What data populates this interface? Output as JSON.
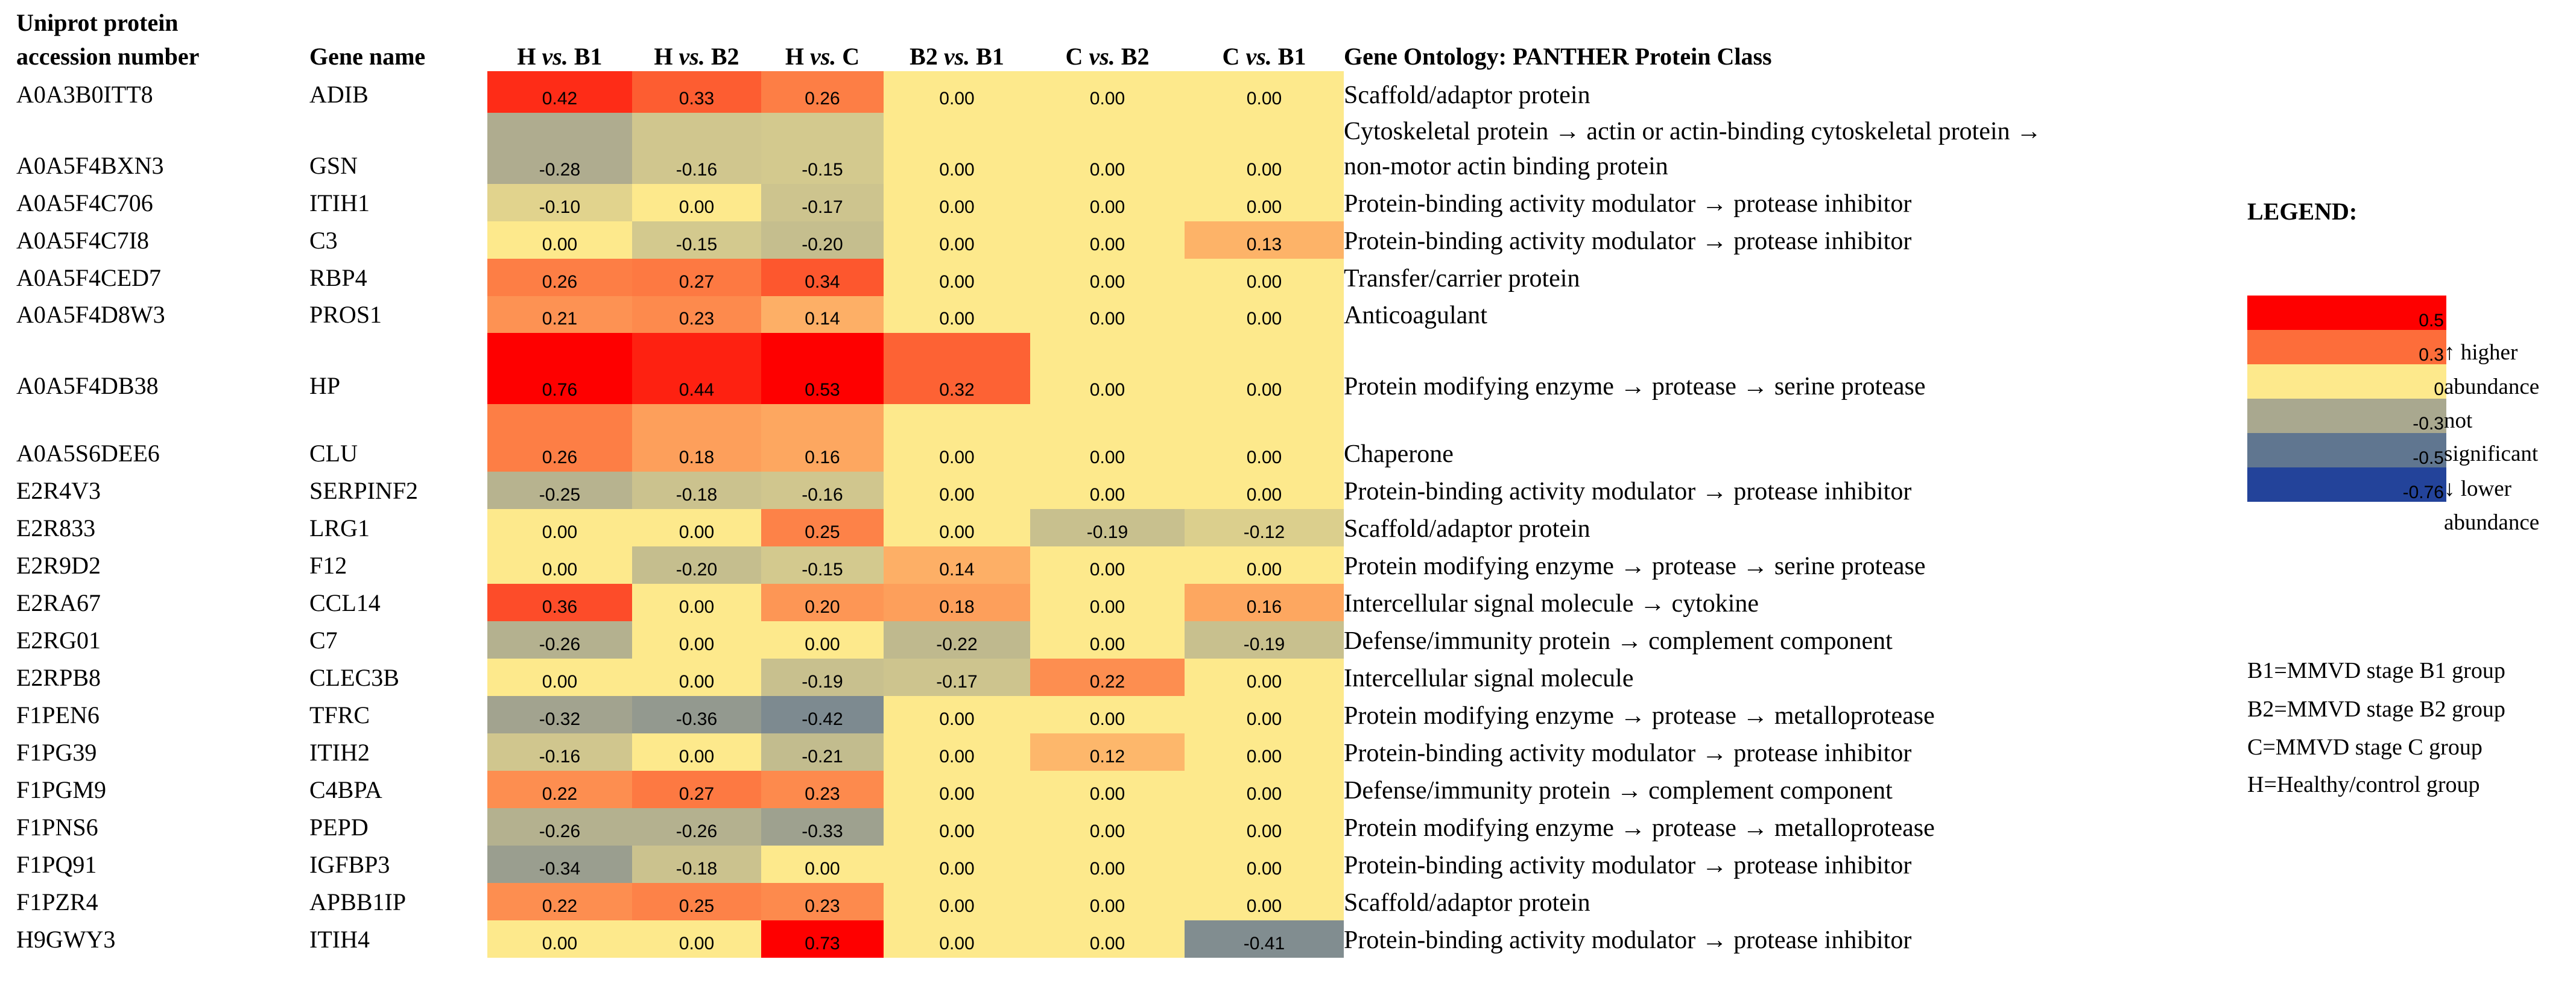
{
  "chart_data": {
    "type": "heatmap",
    "header_accession": [
      "Uniprot protein",
      "accession number"
    ],
    "header_gene": "Gene name",
    "header_ontology": "Gene Ontology: PANTHER Protein Class",
    "comparisons": [
      {
        "left": "H",
        "vs": "vs.",
        "right": "B1"
      },
      {
        "left": "H",
        "vs": "vs.",
        "right": "B2"
      },
      {
        "left": "H",
        "vs": "vs.",
        "right": "C"
      },
      {
        "left": "B2",
        "vs": "vs.",
        "right": "B1"
      },
      {
        "left": "C",
        "vs": "vs.",
        "right": "B2"
      },
      {
        "left": "C",
        "vs": "vs.",
        "right": "B1"
      }
    ],
    "rows": [
      {
        "accession": "A0A3B0ITT8",
        "gene": "ADIB",
        "values": [
          "0.42",
          "0.33",
          "0.26",
          "0.00",
          "0.00",
          "0.00"
        ],
        "ontology": [
          "Scaffold/adaptor protein"
        ]
      },
      {
        "accession": "A0A5F4BXN3",
        "gene": "GSN",
        "values": [
          "-0.28",
          "-0.16",
          "-0.15",
          "0.00",
          "0.00",
          "0.00"
        ],
        "ontology": [
          "Cytoskeletal protein → actin or actin-binding cytoskeletal protein →",
          "non-motor actin binding protein"
        ]
      },
      {
        "accession": "A0A5F4C706",
        "gene": "ITIH1",
        "values": [
          "-0.10",
          "0.00",
          "-0.17",
          "0.00",
          "0.00",
          "0.00"
        ],
        "ontology": [
          "Protein-binding activity modulator → protease inhibitor"
        ]
      },
      {
        "accession": "A0A5F4C7I8",
        "gene": "C3",
        "values": [
          "0.00",
          "-0.15",
          "-0.20",
          "0.00",
          "0.00",
          "0.13"
        ],
        "ontology": [
          "Protein-binding activity modulator →   protease inhibitor"
        ]
      },
      {
        "accession": "A0A5F4CED7",
        "gene": "RBP4",
        "values": [
          "0.26",
          "0.27",
          "0.34",
          "0.00",
          "0.00",
          "0.00"
        ],
        "ontology": [
          "Transfer/carrier protein"
        ]
      },
      {
        "accession": "A0A5F4D8W3",
        "gene": "PROS1",
        "values": [
          "0.21",
          "0.23",
          "0.14",
          "0.00",
          "0.00",
          "0.00"
        ],
        "ontology": [
          "Anticoagulant"
        ]
      },
      {
        "accession": "A0A5F4DB38",
        "gene": "HP",
        "values": [
          "0.76",
          "0.44",
          "0.53",
          "0.32",
          "0.00",
          "0.00"
        ],
        "ontology": [
          "Protein modifying enzyme → protease → serine protease"
        ]
      },
      {
        "accession": "A0A5S6DEE6",
        "gene": "CLU",
        "values": [
          "0.26",
          "0.18",
          "0.16",
          "0.00",
          "0.00",
          "0.00"
        ],
        "ontology": [
          "Chaperone"
        ]
      },
      {
        "accession": "E2R4V3",
        "gene": "SERPINF2",
        "values": [
          "-0.25",
          "-0.18",
          "-0.16",
          "0.00",
          "0.00",
          "0.00"
        ],
        "ontology": [
          "Protein-binding activity modulator →  protease inhibitor"
        ]
      },
      {
        "accession": "E2R833",
        "gene": "LRG1",
        "values": [
          "0.00",
          "0.00",
          "0.25",
          "0.00",
          "-0.19",
          "-0.12"
        ],
        "ontology": [
          "Scaffold/adaptor protein"
        ]
      },
      {
        "accession": "E2R9D2",
        "gene": "F12",
        "values": [
          "0.00",
          "-0.20",
          "-0.15",
          "0.14",
          "0.00",
          "0.00"
        ],
        "ontology": [
          "Protein modifying enzyme →   protease →   serine protease"
        ]
      },
      {
        "accession": "E2RA67",
        "gene": "CCL14",
        "values": [
          "0.36",
          "0.00",
          "0.20",
          "0.18",
          "0.00",
          "0.16"
        ],
        "ontology": [
          "Intercellular signal molecule → cytokine"
        ]
      },
      {
        "accession": "E2RG01",
        "gene": "C7",
        "values": [
          "-0.26",
          "0.00",
          "0.00",
          "-0.22",
          "0.00",
          "-0.19"
        ],
        "ontology": [
          "Defense/immunity protein → complement component"
        ]
      },
      {
        "accession": "E2RPB8",
        "gene": "CLEC3B",
        "values": [
          "0.00",
          "0.00",
          "-0.19",
          "-0.17",
          "0.22",
          "0.00"
        ],
        "ontology": [
          "Intercellular signal molecule"
        ]
      },
      {
        "accession": "F1PEN6",
        "gene": "TFRC",
        "values": [
          "-0.32",
          "-0.36",
          "-0.42",
          "0.00",
          "0.00",
          "0.00"
        ],
        "ontology": [
          "Protein modifying enzyme → protease →  metalloprotease"
        ]
      },
      {
        "accession": "F1PG39",
        "gene": "ITIH2",
        "values": [
          "-0.16",
          "0.00",
          "-0.21",
          "0.00",
          "0.12",
          "0.00"
        ],
        "ontology": [
          "Protein-binding activity modulator → protease inhibitor"
        ]
      },
      {
        "accession": "F1PGM9",
        "gene": "C4BPA",
        "values": [
          "0.22",
          "0.27",
          "0.23",
          "0.00",
          "0.00",
          "0.00"
        ],
        "ontology": [
          "Defense/immunity protein → complement component"
        ]
      },
      {
        "accession": "F1PNS6",
        "gene": "PEPD",
        "values": [
          "-0.26",
          "-0.26",
          "-0.33",
          "0.00",
          "0.00",
          "0.00"
        ],
        "ontology": [
          "Protein modifying enzyme → protease → metalloprotease"
        ]
      },
      {
        "accession": "F1PQ91",
        "gene": "IGFBP3",
        "values": [
          "-0.34",
          "-0.18",
          "0.00",
          "0.00",
          "0.00",
          "0.00"
        ],
        "ontology": [
          "Protein-binding activity modulator → protease inhibitor"
        ]
      },
      {
        "accession": "F1PZR4",
        "gene": "APBB1IP",
        "values": [
          "0.22",
          "0.25",
          "0.23",
          "0.00",
          "0.00",
          "0.00"
        ],
        "ontology": [
          "Scaffold/adaptor protein"
        ]
      },
      {
        "accession": "H9GWY3",
        "gene": "ITIH4",
        "values": [
          "0.00",
          "0.00",
          "0.73",
          "0.00",
          "0.00",
          "-0.41"
        ],
        "ontology": [
          "Protein-binding activity modulator →  protease inhibitor"
        ]
      }
    ],
    "legend": {
      "title": "LEGEND:",
      "scale": [
        {
          "value": "0.5",
          "color": "#fe0000"
        },
        {
          "value": "0.3",
          "color": "#fd6d3a"
        },
        {
          "value": "0",
          "color": "#fde98c"
        },
        {
          "value": "-0.3",
          "color": "#a9a88f"
        },
        {
          "value": "-0.5",
          "color": "#607690"
        },
        {
          "value": "-0.76",
          "color": "#23439a"
        }
      ],
      "higher": [
        "↑ higher",
        "abundance"
      ],
      "not_significant": [
        "not",
        "significant"
      ],
      "lower": [
        "↓ lower",
        "abundance"
      ]
    },
    "definitions": [
      "B1=MMVD stage B1 group",
      "B2=MMVD stage B2 group",
      "C=MMVD stage C group",
      "H=Healthy/control group"
    ],
    "value_range": [
      -0.76,
      0.76
    ]
  }
}
